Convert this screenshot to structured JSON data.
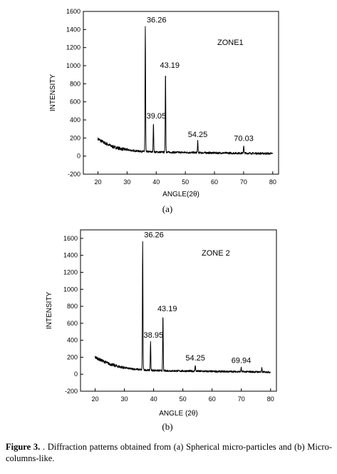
{
  "chart_data": [
    {
      "type": "line",
      "panel": "(a)",
      "annotation": "ZONE1",
      "xlabel": "ANGLE(2θ)",
      "ylabel": "INTENSITY",
      "xlim": [
        15,
        82
      ],
      "ylim": [
        -200,
        1600
      ],
      "xticks": [
        20,
        30,
        40,
        50,
        60,
        70,
        80
      ],
      "yticks": [
        -200,
        0,
        200,
        400,
        600,
        800,
        1000,
        1200,
        1400,
        1600
      ],
      "baseline": [
        [
          20,
          190
        ],
        [
          22,
          150
        ],
        [
          25,
          105
        ],
        [
          28,
          80
        ],
        [
          32,
          60
        ],
        [
          36,
          50
        ],
        [
          40,
          45
        ],
        [
          45,
          42
        ],
        [
          50,
          40
        ],
        [
          60,
          35
        ],
        [
          70,
          32
        ],
        [
          80,
          28
        ]
      ],
      "peaks": [
        {
          "x": 36.26,
          "y": 1430,
          "label": "36.26"
        },
        {
          "x": 39.05,
          "y": 370,
          "label": "39.05"
        },
        {
          "x": 43.19,
          "y": 930,
          "label": "43.19"
        },
        {
          "x": 54.25,
          "y": 165,
          "label": "54.25"
        },
        {
          "x": 70.03,
          "y": 120,
          "label": "70.03"
        }
      ],
      "grid": false
    },
    {
      "type": "line",
      "panel": "(b)",
      "annotation": "ZONE 2",
      "xlabel": "ANGLE (2θ)",
      "ylabel": "INTENSITY",
      "xlim": [
        15,
        82
      ],
      "ylim": [
        -200,
        1700
      ],
      "xticks": [
        20,
        30,
        40,
        50,
        60,
        70,
        80
      ],
      "yticks": [
        -200,
        0,
        200,
        400,
        600,
        800,
        1000,
        1200,
        1400,
        1600
      ],
      "baseline": [
        [
          20,
          200
        ],
        [
          22,
          165
        ],
        [
          25,
          120
        ],
        [
          28,
          90
        ],
        [
          32,
          65
        ],
        [
          36,
          52
        ],
        [
          40,
          45
        ],
        [
          45,
          40
        ],
        [
          50,
          38
        ],
        [
          60,
          33
        ],
        [
          70,
          30
        ],
        [
          80,
          25
        ]
      ],
      "peaks": [
        {
          "x": 36.26,
          "y": 1560,
          "label": "36.26"
        },
        {
          "x": 38.95,
          "y": 380,
          "label": "38.95"
        },
        {
          "x": 43.19,
          "y": 690,
          "label": "43.19"
        },
        {
          "x": 54.25,
          "y": 110,
          "label": "54.25"
        },
        {
          "x": 69.94,
          "y": 80,
          "label": "69.94"
        },
        {
          "x": 77.0,
          "y": 70,
          "label": ""
        }
      ],
      "grid": false
    }
  ],
  "caption": {
    "prefix": "Figure 3.",
    "text": " . Diffraction patterns obtained from (a) Spherical micro-particles and (b) Micro-columns-like."
  }
}
